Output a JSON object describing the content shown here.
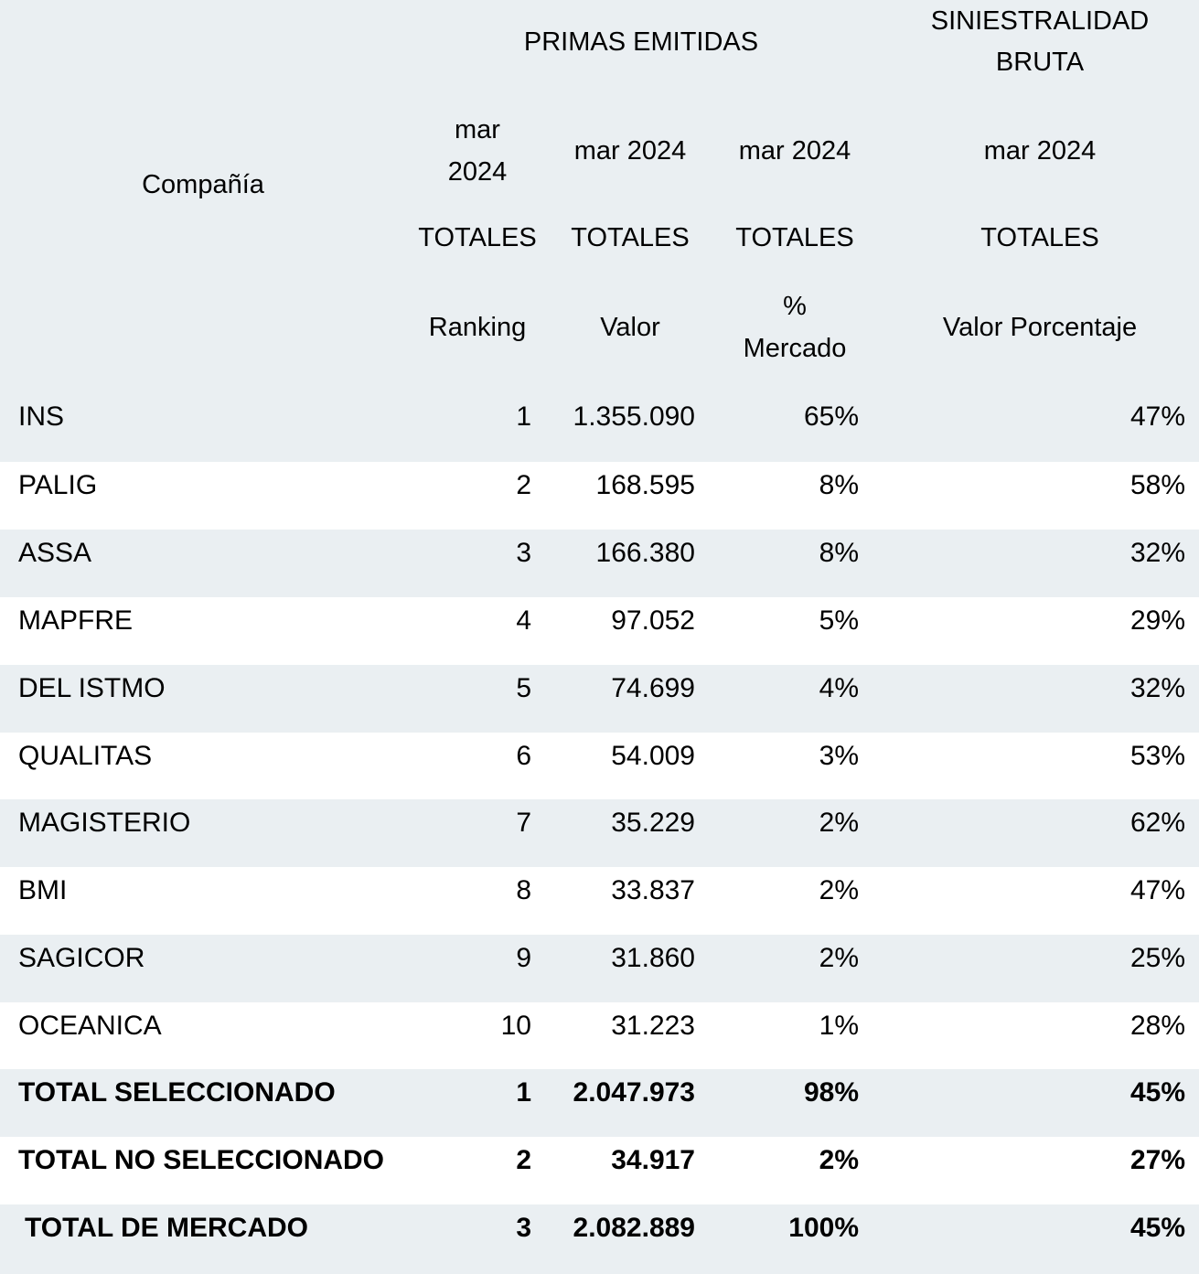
{
  "header": {
    "group_primas": "PRIMAS EMITIDAS",
    "group_siniestralidad_line1": "SINIESTRALIDAD",
    "group_siniestralidad_line2": "BRUTA",
    "company_label": "Compañía",
    "period_rank_line1": "mar",
    "period_rank_line2": "2024",
    "period_valor": "mar 2024",
    "period_pct": "mar 2024",
    "period_sin": "mar 2024",
    "totales": "TOTALES",
    "metric_rank": "Ranking",
    "metric_valor": "Valor",
    "metric_pct_line1": "%",
    "metric_pct_line2": "Mercado",
    "metric_sin": "Valor Porcentaje"
  },
  "rows": [
    {
      "company": "INS",
      "ranking": "1",
      "valor": "1.355.090",
      "mercado": "65%",
      "siniestralidad": "47%"
    },
    {
      "company": "PALIG",
      "ranking": "2",
      "valor": "168.595",
      "mercado": "8%",
      "siniestralidad": "58%"
    },
    {
      "company": "ASSA",
      "ranking": "3",
      "valor": "166.380",
      "mercado": "8%",
      "siniestralidad": "32%"
    },
    {
      "company": "MAPFRE",
      "ranking": "4",
      "valor": "97.052",
      "mercado": "5%",
      "siniestralidad": "29%"
    },
    {
      "company": "DEL ISTMO",
      "ranking": "5",
      "valor": "74.699",
      "mercado": "4%",
      "siniestralidad": "32%"
    },
    {
      "company": "QUALITAS",
      "ranking": "6",
      "valor": "54.009",
      "mercado": "3%",
      "siniestralidad": "53%"
    },
    {
      "company": "MAGISTERIO",
      "ranking": "7",
      "valor": "35.229",
      "mercado": "2%",
      "siniestralidad": "62%"
    },
    {
      "company": "BMI",
      "ranking": "8",
      "valor": "33.837",
      "mercado": "2%",
      "siniestralidad": "47%"
    },
    {
      "company": "SAGICOR",
      "ranking": "9",
      "valor": "31.860",
      "mercado": "2%",
      "siniestralidad": "25%"
    },
    {
      "company": "OCEANICA",
      "ranking": "10",
      "valor": "31.223",
      "mercado": "1%",
      "siniestralidad": "28%"
    }
  ],
  "totals": [
    {
      "company": "TOTAL SELECCIONADO",
      "ranking": "1",
      "valor": "2.047.973",
      "mercado": "98%",
      "siniestralidad": "45%"
    },
    {
      "company": "TOTAL NO SELECCIONADO",
      "ranking": "2",
      "valor": "34.917",
      "mercado": "2%",
      "siniestralidad": "27%"
    },
    {
      "company": "TOTAL DE MERCADO",
      "ranking": "3",
      "valor": "2.082.889",
      "mercado": "100%",
      "siniestralidad": "45%"
    }
  ]
}
